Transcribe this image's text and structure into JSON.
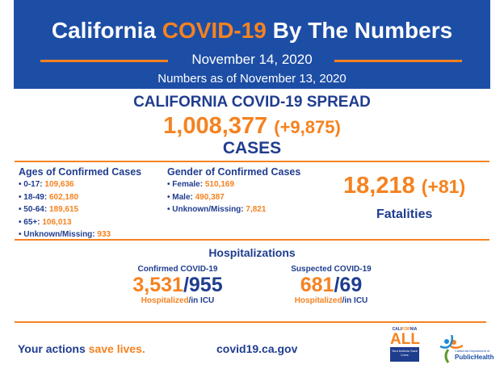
{
  "header": {
    "title_pre": "California ",
    "title_highlight": "COVID-19",
    "title_post": " By The Numbers",
    "date": "November 14, 2020",
    "as_of": "Numbers as of November 13, 2020"
  },
  "spread": {
    "heading": "CALIFORNIA COVID-19 SPREAD",
    "cases": "1,008,377",
    "cases_change": "(+9,875)",
    "cases_label": "CASES"
  },
  "ages": {
    "heading": "Ages of Confirmed Cases",
    "items": [
      {
        "label": "0-17:",
        "value": "109,636"
      },
      {
        "label": "18-49:",
        "value": "602,180"
      },
      {
        "label": "50-64:",
        "value": "189,615"
      },
      {
        "label": "65+:",
        "value": "106,013"
      },
      {
        "label": "Unknown/Missing:",
        "value": "933"
      }
    ]
  },
  "gender": {
    "heading": "Gender of Confirmed Cases",
    "items": [
      {
        "label": "Female:",
        "value": "510,169"
      },
      {
        "label": "Male:",
        "value": "490,387"
      },
      {
        "label": "Unknown/Missing:",
        "value": "7,821"
      }
    ]
  },
  "fatalities": {
    "value": "18,218",
    "change": "(+81)",
    "label": "Fatalities"
  },
  "hospitalizations": {
    "heading": "Hospitalizations",
    "confirmed": {
      "title": "Confirmed COVID-19",
      "hospitalized": "3,531",
      "icu": "955",
      "label_hosp": "Hospitalized",
      "label_icu": "/in ICU"
    },
    "suspected": {
      "title": "Suspected COVID-19",
      "hospitalized": "681",
      "icu": "69",
      "label_hosp": "Hospitalized",
      "label_icu": "/in ICU"
    }
  },
  "footer": {
    "slogan_pre": "Your actions ",
    "slogan_highlight": "save lives.",
    "website": "covid19.ca.gov"
  },
  "logos": {
    "ca_all": "CALIFORNIA ALL",
    "ca_all_box": "Your Actions Save Lives",
    "cdph": "California Department of PublicHealth"
  },
  "colors": {
    "blue": "#1d4ea6",
    "orange": "#f58220",
    "dark_blue": "#1f3d8f"
  }
}
